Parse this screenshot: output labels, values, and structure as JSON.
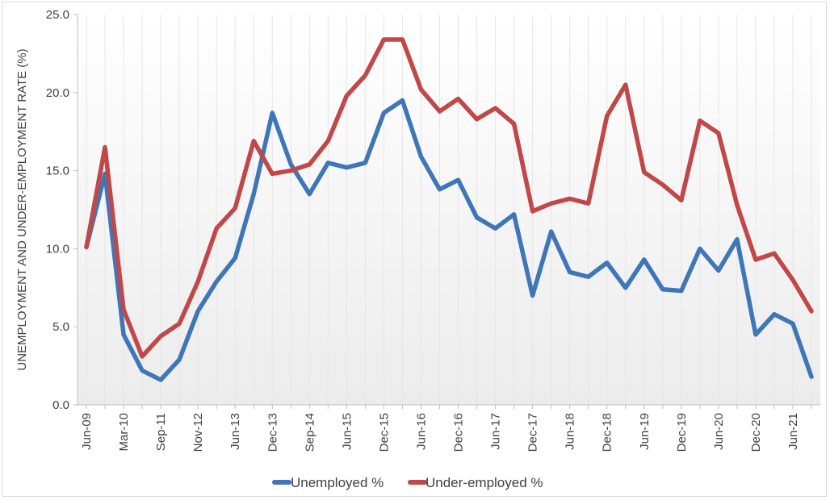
{
  "chart_data": {
    "type": "line",
    "title": "",
    "xlabel": "",
    "ylabel": "UNEMPLOYMENT AND UNDER-EMPLOYMENT RATE (%)",
    "ylim": [
      0,
      25
    ],
    "yticks": [
      "0.0",
      "5.0",
      "10.0",
      "15.0",
      "20.0",
      "25.0"
    ],
    "grid": "vertical",
    "legend": "bottom",
    "categories": [
      "Jun-09",
      "",
      "Mar-10",
      "",
      "Sep-11",
      "",
      "Nov-12",
      "",
      "Jun-13",
      "",
      "Dec-13",
      "",
      "Sep-14",
      "",
      "Jun-15",
      "",
      "Dec-15",
      "",
      "Jun-16",
      "",
      "Dec-16",
      "",
      "Jun-17",
      "",
      "Dec-17",
      "",
      "Jun-18",
      "",
      "Dec-18",
      "",
      "Jun-19",
      "",
      "Dec-19",
      "",
      "Jun-20",
      "",
      "Dec-20",
      "",
      "Jun-21",
      ""
    ],
    "series": [
      {
        "name": "Unemployed %",
        "color": "#3f76b8",
        "values": [
          10.1,
          14.8,
          4.5,
          2.2,
          1.6,
          2.9,
          6.0,
          7.9,
          9.4,
          13.5,
          18.7,
          15.4,
          13.5,
          15.5,
          15.2,
          15.5,
          18.7,
          19.5,
          15.9,
          13.8,
          14.4,
          12.0,
          11.3,
          12.2,
          7.0,
          11.1,
          8.5,
          8.2,
          9.1,
          7.5,
          9.3,
          7.4,
          7.3,
          10.0,
          8.6,
          10.6,
          4.5,
          5.8,
          5.2,
          1.8
        ]
      },
      {
        "name": "Under-employed %",
        "color": "#c04848",
        "values": [
          10.1,
          16.5,
          6.1,
          3.1,
          4.4,
          5.2,
          7.9,
          11.3,
          12.6,
          16.9,
          14.8,
          15.0,
          15.4,
          16.9,
          19.8,
          21.1,
          23.4,
          23.4,
          20.2,
          18.8,
          19.6,
          18.3,
          19.0,
          18.0,
          12.4,
          12.9,
          13.2,
          12.9,
          18.5,
          20.5,
          14.9,
          14.1,
          13.1,
          18.2,
          17.4,
          12.8,
          9.3,
          9.7,
          8.0,
          6.0
        ]
      }
    ]
  }
}
